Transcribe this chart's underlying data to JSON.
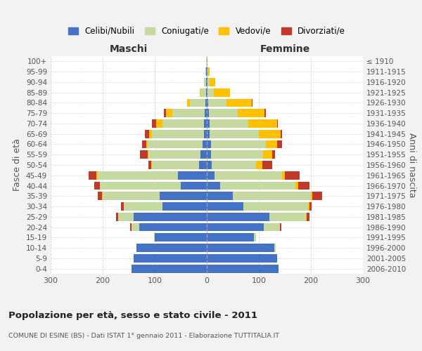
{
  "age_groups": [
    "0-4",
    "5-9",
    "10-14",
    "15-19",
    "20-24",
    "25-29",
    "30-34",
    "35-39",
    "40-44",
    "45-49",
    "50-54",
    "55-59",
    "60-64",
    "65-69",
    "70-74",
    "75-79",
    "80-84",
    "85-89",
    "90-94",
    "95-99",
    "100+"
  ],
  "birth_years": [
    "2006-2010",
    "2001-2005",
    "1996-2000",
    "1991-1995",
    "1986-1990",
    "1981-1985",
    "1976-1980",
    "1971-1975",
    "1966-1970",
    "1961-1965",
    "1956-1960",
    "1951-1955",
    "1946-1950",
    "1941-1945",
    "1936-1940",
    "1931-1935",
    "1926-1930",
    "1921-1925",
    "1916-1920",
    "1911-1915",
    "≤ 1910"
  ],
  "males": {
    "celibi": [
      145,
      140,
      135,
      100,
      130,
      140,
      85,
      90,
      50,
      55,
      15,
      12,
      8,
      6,
      5,
      4,
      3,
      2,
      1,
      1,
      0
    ],
    "coniugati": [
      0,
      0,
      0,
      2,
      15,
      30,
      75,
      110,
      155,
      155,
      90,
      100,
      105,
      100,
      80,
      62,
      30,
      10,
      4,
      2,
      1
    ],
    "vedovi": [
      0,
      0,
      0,
      0,
      0,
      0,
      0,
      1,
      1,
      2,
      2,
      2,
      3,
      5,
      12,
      12,
      5,
      2,
      1,
      0,
      0
    ],
    "divorziati": [
      0,
      0,
      0,
      0,
      2,
      5,
      5,
      8,
      10,
      15,
      5,
      15,
      8,
      8,
      8,
      5,
      0,
      0,
      0,
      0,
      0
    ]
  },
  "females": {
    "nubili": [
      138,
      135,
      130,
      90,
      110,
      120,
      70,
      50,
      25,
      15,
      10,
      8,
      8,
      5,
      5,
      4,
      3,
      2,
      1,
      1,
      0
    ],
    "coniugate": [
      0,
      0,
      2,
      5,
      30,
      70,
      125,
      150,
      145,
      130,
      85,
      100,
      105,
      95,
      75,
      55,
      35,
      12,
      5,
      2,
      1
    ],
    "vedove": [
      0,
      0,
      0,
      0,
      1,
      2,
      2,
      3,
      5,
      5,
      12,
      18,
      22,
      42,
      55,
      52,
      48,
      30,
      10,
      2,
      0
    ],
    "divorziate": [
      0,
      0,
      0,
      0,
      2,
      5,
      5,
      18,
      22,
      28,
      18,
      5,
      10,
      2,
      2,
      3,
      2,
      0,
      0,
      0,
      0
    ]
  },
  "colors": {
    "celibi_nubili": "#4472c4",
    "coniugati": "#c6d9a0",
    "vedovi": "#ffc000",
    "divorziati": "#c0392b"
  },
  "xlim": 300,
  "title": "Popolazione per età, sesso e stato civile - 2011",
  "subtitle": "COMUNE DI ESINE (BS) - Dati ISTAT 1° gennaio 2011 - Elaborazione TUTTITALIA.IT",
  "ylabel_left": "Fasce di età",
  "ylabel_right": "Anni di nascita",
  "xlabel_left": "Maschi",
  "xlabel_right": "Femmine",
  "bg_color": "#f2f2f2",
  "plot_bg": "#ffffff",
  "grid_color": "#cccccc"
}
